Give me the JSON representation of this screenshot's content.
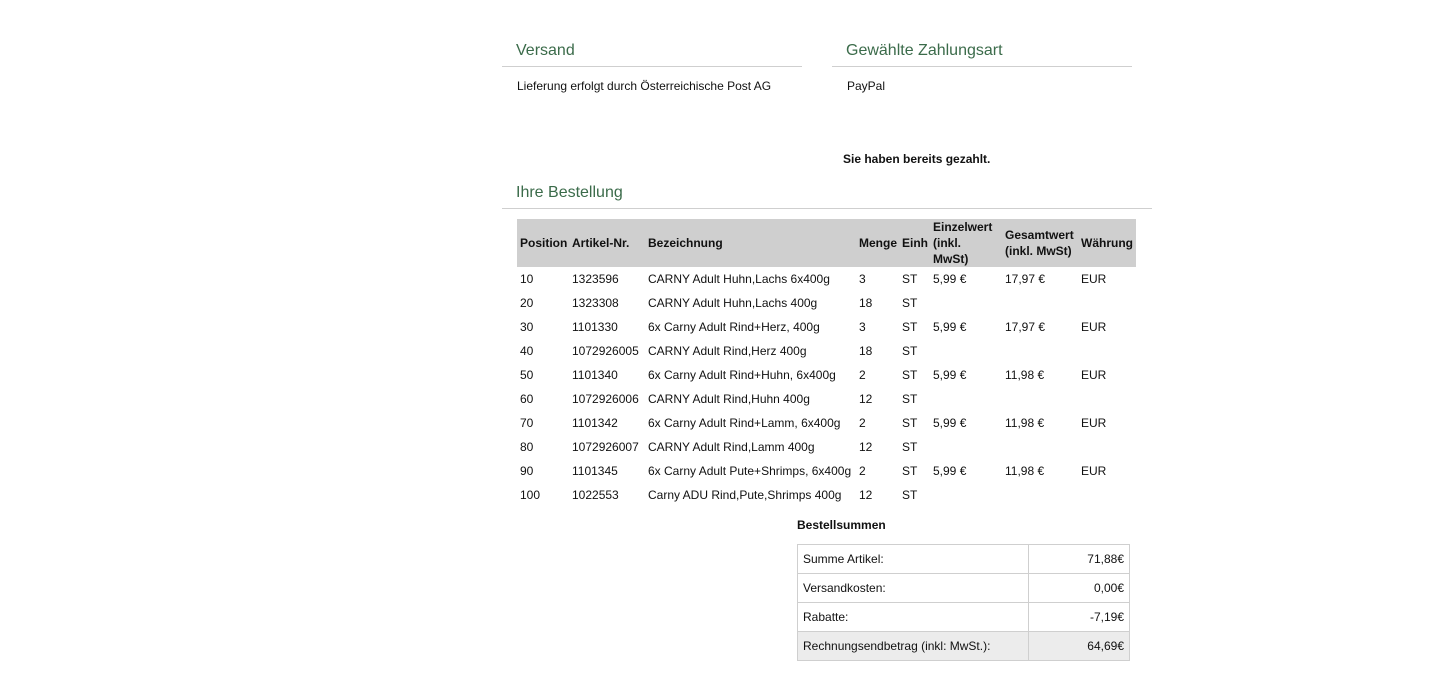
{
  "shipping": {
    "title": "Versand",
    "text": "Lieferung erfolgt durch Österreichische Post AG"
  },
  "payment": {
    "title": "Gewählte Zahlungsart",
    "method": "PayPal",
    "status": "Sie haben bereits gezahlt."
  },
  "order": {
    "title": "Ihre Bestellung",
    "headers": {
      "position": "Position",
      "article": "Artikel-Nr.",
      "description": "Bezeichnung",
      "qty": "Menge",
      "unit": "Einh",
      "unit_price_1": "Einzelwert",
      "unit_price_2": "(inkl. MwSt)",
      "total_1": "Gesamtwert",
      "total_2": "(inkl. MwSt)",
      "currency": "Währung"
    },
    "rows": [
      {
        "pos": "10",
        "art": "1323596",
        "desc": "CARNY Adult Huhn,Lachs 6x400g",
        "qty": "3",
        "unit": "ST",
        "price": "5,99 €",
        "total": "17,97 €",
        "cur": "EUR"
      },
      {
        "pos": "20",
        "art": "1323308",
        "desc": "CARNY Adult Huhn,Lachs 400g",
        "qty": "18",
        "unit": "ST",
        "price": "",
        "total": "",
        "cur": ""
      },
      {
        "pos": "30",
        "art": "1101330",
        "desc": "6x Carny Adult Rind+Herz, 400g",
        "qty": "3",
        "unit": "ST",
        "price": "5,99 €",
        "total": "17,97 €",
        "cur": "EUR"
      },
      {
        "pos": "40",
        "art": "1072926005",
        "desc": "CARNY Adult Rind,Herz 400g",
        "qty": "18",
        "unit": "ST",
        "price": "",
        "total": "",
        "cur": ""
      },
      {
        "pos": "50",
        "art": "1101340",
        "desc": "6x Carny Adult Rind+Huhn, 6x400g",
        "qty": "2",
        "unit": "ST",
        "price": "5,99 €",
        "total": "11,98 €",
        "cur": "EUR"
      },
      {
        "pos": "60",
        "art": "1072926006",
        "desc": "CARNY Adult Rind,Huhn 400g",
        "qty": "12",
        "unit": "ST",
        "price": "",
        "total": "",
        "cur": ""
      },
      {
        "pos": "70",
        "art": "1101342",
        "desc": "6x Carny Adult Rind+Lamm, 6x400g",
        "qty": "2",
        "unit": "ST",
        "price": "5,99 €",
        "total": "11,98 €",
        "cur": "EUR"
      },
      {
        "pos": "80",
        "art": "1072926007",
        "desc": "CARNY Adult Rind,Lamm 400g",
        "qty": "12",
        "unit": "ST",
        "price": "",
        "total": "",
        "cur": ""
      },
      {
        "pos": "90",
        "art": "1101345",
        "desc": "6x Carny Adult Pute+Shrimps, 6x400g",
        "qty": "2",
        "unit": "ST",
        "price": "5,99 €",
        "total": "11,98 €",
        "cur": "EUR"
      },
      {
        "pos": "100",
        "art": "1022553",
        "desc": "Carny ADU Rind,Pute,Shrimps 400g",
        "qty": "12",
        "unit": "ST",
        "price": "",
        "total": "",
        "cur": ""
      }
    ]
  },
  "totals": {
    "title": "Bestellsummen",
    "rows": [
      {
        "label": "Summe Artikel:",
        "value": "71,88€"
      },
      {
        "label": "Versandkosten:",
        "value": "0,00€"
      },
      {
        "label": "Rabatte:",
        "value": "-7,19€"
      },
      {
        "label": "Rechnungsendbetrag (inkl: MwSt.):",
        "value": "64,69€"
      }
    ]
  },
  "colors": {
    "heading": "#3b6b4a",
    "header_bg": "#cfcfcf",
    "total_bg": "#ececec"
  }
}
